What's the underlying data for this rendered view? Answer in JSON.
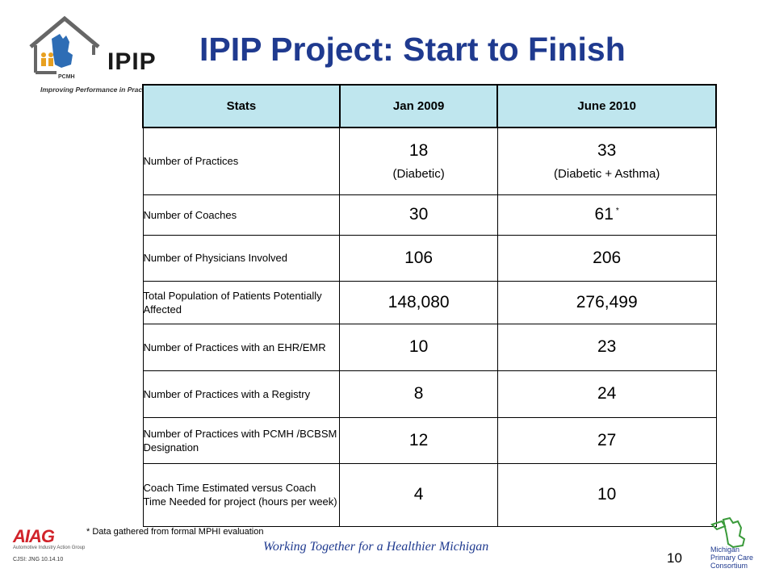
{
  "logo": {
    "name": "IPIP",
    "badge": "PCMH",
    "tagline": "Improving Performance in Practice"
  },
  "title": "IPIP Project: Start to Finish",
  "table": {
    "headers": [
      "Stats",
      "Jan 2009",
      "June 2010"
    ],
    "rows": [
      {
        "label": "Number of Practices",
        "jan": "18",
        "jan_note": "(Diabetic)",
        "jun": "33",
        "jun_note": "(Diabetic + Asthma)"
      },
      {
        "label": "Number of Coaches",
        "jan": "30",
        "jun": "61",
        "jun_mark": "*"
      },
      {
        "label": "Number of Physicians Involved",
        "jan": "106",
        "jun": "206"
      },
      {
        "label": "Total Population of Patients Potentially Affected",
        "jan": "148,080",
        "jun": "276,499"
      },
      {
        "label": "Number of Practices with an EHR/EMR",
        "jan": "10",
        "jun": "23"
      },
      {
        "label": "Number of Practices with a Registry",
        "jan": "8",
        "jun": "24"
      },
      {
        "label": "Number of Practices with PCMH /BCBSM Designation",
        "jan": "12",
        "jun": "27"
      },
      {
        "label": "Coach Time Estimated versus Coach Time Needed for project (hours per week)",
        "jan": "4",
        "jun": "10"
      }
    ]
  },
  "footnote": "* Data gathered from formal MPHI evaluation",
  "motto": "Working Together for a Healthier Michigan",
  "page_number": "10",
  "footer_left": {
    "logo": "AIAG",
    "logo_sub": "Automotive Industry Action Group",
    "code": "CJSI: JNG 10.14.10"
  },
  "footer_right": {
    "logo_lines": [
      "Michigan",
      "Primary Care",
      "Consortium"
    ]
  },
  "colors": {
    "title": "#1f3a8f",
    "header_fill": "#bfe6ee",
    "aiag_red": "#d1232a",
    "motto": "#1f3a8f"
  }
}
